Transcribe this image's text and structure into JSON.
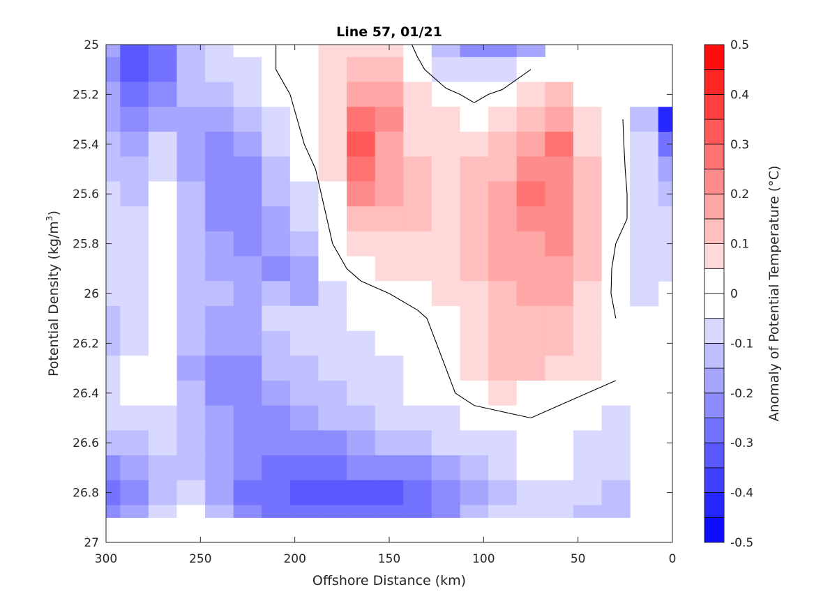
{
  "chart_data": {
    "type": "heatmap",
    "title": "Line 57, 01/21",
    "xlabel": "Offshore Distance (km)",
    "ylabel_main": "Potential Density (kg/m",
    "ylabel_sup": "3",
    "ylabel_close": ")",
    "xlim": [
      300,
      0
    ],
    "x_reversed": true,
    "ylim": [
      25,
      27
    ],
    "y_reversed": true,
    "xticks": [
      300,
      250,
      200,
      150,
      100,
      50,
      0
    ],
    "xtick_labels": [
      "300",
      "250",
      "200",
      "150",
      "100",
      "50",
      "0"
    ],
    "yticks": [
      25,
      25.2,
      25.4,
      25.6,
      25.8,
      26,
      26.2,
      26.4,
      26.6,
      26.8,
      27
    ],
    "ytick_labels": [
      "25",
      "25.2",
      "25.4",
      "25.6",
      "25.8",
      "26",
      "26.2",
      "26.4",
      "26.6",
      "26.8",
      "27"
    ],
    "grid": false,
    "colorbar": {
      "label": "Anomaly of Potential Temperature (°C)",
      "clim": [
        -0.5,
        0.5
      ],
      "step": 0.05,
      "tick_values": [
        0.5,
        0.4,
        0.3,
        0.2,
        0.1,
        0,
        -0.1,
        -0.2,
        -0.3,
        -0.4,
        -0.5
      ],
      "tick_labels": [
        "0.5",
        "0.4",
        "0.3",
        "0.2",
        "0.1",
        "0",
        "-0.1",
        "-0.2",
        "-0.3",
        "-0.4",
        "-0.5"
      ],
      "negative_color": "#0000ff",
      "positive_color": "#ff0000",
      "zero_color": "#ffffff"
    },
    "contour_level": 0,
    "data_extent": {
      "x": [
        35,
        300
      ],
      "y": [
        25,
        26.9
      ]
    },
    "grid_x": [
      300,
      285,
      270,
      255,
      240,
      225,
      210,
      195,
      180,
      165,
      150,
      135,
      120,
      105,
      90,
      75,
      60,
      45,
      30,
      15,
      0
    ],
    "grid_y": [
      25.0,
      25.1,
      25.2,
      25.3,
      25.4,
      25.5,
      25.6,
      25.7,
      25.8,
      25.9,
      26.0,
      26.1,
      26.2,
      26.3,
      26.4,
      26.5,
      26.6,
      26.7,
      26.8,
      26.9
    ],
    "anomaly": [
      [
        -0.18,
        -0.34,
        -0.28,
        -0.14,
        -0.08,
        -0.04,
        0.0,
        0.02,
        0.06,
        0.1,
        0.08,
        -0.02,
        -0.14,
        -0.2,
        -0.24,
        -0.18,
        null,
        null,
        null,
        null,
        null
      ],
      [
        -0.2,
        -0.32,
        -0.26,
        -0.12,
        -0.1,
        -0.06,
        0.0,
        0.04,
        0.08,
        0.14,
        0.12,
        0.02,
        -0.06,
        -0.1,
        -0.08,
        0.0,
        0.04,
        null,
        null,
        null,
        null
      ],
      [
        -0.18,
        -0.26,
        -0.2,
        -0.14,
        -0.14,
        -0.1,
        -0.04,
        0.04,
        0.1,
        0.2,
        0.16,
        0.06,
        0.02,
        -0.02,
        0.02,
        0.08,
        0.12,
        0.04,
        null,
        null,
        null
      ],
      [
        -0.16,
        -0.2,
        -0.16,
        -0.16,
        -0.18,
        -0.14,
        -0.06,
        0.02,
        0.1,
        0.28,
        0.22,
        0.08,
        0.06,
        0.04,
        0.06,
        0.12,
        0.2,
        0.08,
        0.04,
        -0.12,
        -0.4
      ],
      [
        -0.14,
        -0.16,
        -0.1,
        -0.18,
        -0.2,
        -0.16,
        -0.1,
        0.0,
        0.08,
        0.3,
        0.2,
        0.1,
        0.08,
        0.1,
        0.12,
        0.16,
        0.26,
        0.1,
        0.04,
        -0.1,
        -0.3
      ],
      [
        -0.12,
        -0.14,
        -0.06,
        -0.16,
        -0.22,
        -0.2,
        -0.12,
        -0.04,
        0.06,
        0.26,
        0.18,
        0.12,
        0.1,
        0.12,
        0.14,
        0.22,
        0.24,
        0.12,
        0.04,
        -0.08,
        -0.16
      ],
      [
        -0.1,
        -0.12,
        -0.02,
        -0.14,
        -0.22,
        -0.24,
        -0.14,
        -0.06,
        0.04,
        0.22,
        0.16,
        0.12,
        0.1,
        0.12,
        0.16,
        0.26,
        0.24,
        0.14,
        0.04,
        -0.06,
        -0.12
      ],
      [
        -0.08,
        -0.1,
        0.0,
        -0.14,
        -0.2,
        -0.22,
        -0.16,
        -0.08,
        0.02,
        0.14,
        0.14,
        0.12,
        0.1,
        0.12,
        0.16,
        0.24,
        0.24,
        0.14,
        0.04,
        -0.06,
        -0.1
      ],
      [
        -0.08,
        -0.08,
        -0.02,
        -0.12,
        -0.18,
        -0.2,
        -0.18,
        -0.12,
        0.0,
        0.08,
        0.1,
        0.1,
        0.1,
        0.12,
        0.16,
        0.2,
        0.22,
        0.12,
        0.0,
        -0.08,
        -0.1
      ],
      [
        -0.08,
        -0.06,
        -0.04,
        -0.12,
        -0.16,
        -0.18,
        -0.2,
        -0.18,
        -0.02,
        0.02,
        0.06,
        0.08,
        0.08,
        0.12,
        0.16,
        0.18,
        0.2,
        0.12,
        -0.02,
        -0.1,
        -0.1
      ],
      [
        -0.1,
        -0.06,
        -0.04,
        -0.12,
        -0.14,
        -0.16,
        -0.14,
        -0.16,
        -0.06,
        -0.02,
        0.0,
        0.04,
        0.06,
        0.1,
        0.14,
        0.16,
        0.16,
        0.1,
        -0.02,
        -0.08,
        null
      ],
      [
        -0.12,
        -0.06,
        -0.04,
        -0.12,
        -0.16,
        -0.16,
        -0.1,
        -0.1,
        -0.08,
        -0.04,
        -0.02,
        -0.02,
        0.04,
        0.08,
        0.12,
        0.14,
        0.14,
        0.1,
        0.0,
        null,
        null
      ],
      [
        -0.12,
        -0.06,
        -0.04,
        -0.14,
        -0.18,
        -0.18,
        -0.12,
        -0.1,
        -0.1,
        -0.06,
        -0.04,
        -0.04,
        0.02,
        0.1,
        0.14,
        0.14,
        0.12,
        0.08,
        0.02,
        null,
        null
      ],
      [
        -0.1,
        -0.04,
        -0.04,
        -0.16,
        -0.2,
        -0.2,
        -0.14,
        -0.12,
        -0.1,
        -0.08,
        -0.06,
        -0.04,
        0.0,
        0.08,
        0.14,
        0.14,
        0.1,
        0.06,
        0.02,
        null,
        null
      ],
      [
        -0.08,
        -0.02,
        -0.02,
        -0.14,
        -0.2,
        -0.22,
        -0.18,
        -0.14,
        -0.12,
        -0.1,
        -0.08,
        -0.04,
        -0.02,
        0.04,
        0.06,
        0.04,
        0.02,
        0.0,
        -0.02,
        null,
        null
      ],
      [
        -0.1,
        -0.06,
        -0.06,
        -0.12,
        -0.18,
        -0.2,
        -0.2,
        -0.18,
        -0.14,
        -0.12,
        -0.1,
        -0.08,
        -0.06,
        -0.04,
        -0.02,
        0.0,
        -0.02,
        -0.04,
        -0.06,
        null,
        null
      ],
      [
        -0.14,
        -0.12,
        -0.1,
        -0.14,
        -0.18,
        -0.22,
        -0.24,
        -0.22,
        -0.2,
        -0.16,
        -0.14,
        -0.12,
        -0.1,
        -0.08,
        -0.06,
        -0.02,
        -0.04,
        -0.06,
        -0.1,
        null,
        null
      ],
      [
        -0.22,
        -0.18,
        -0.12,
        -0.14,
        -0.18,
        -0.24,
        -0.28,
        -0.3,
        -0.26,
        -0.22,
        -0.22,
        -0.2,
        -0.16,
        -0.12,
        -0.1,
        0.0,
        -0.04,
        -0.06,
        -0.1,
        null,
        null
      ],
      [
        -0.3,
        -0.24,
        -0.12,
        -0.06,
        -0.16,
        -0.26,
        -0.3,
        -0.34,
        -0.32,
        -0.34,
        -0.32,
        -0.28,
        -0.22,
        -0.18,
        -0.12,
        -0.08,
        -0.08,
        -0.1,
        -0.12,
        null,
        null
      ],
      [
        -0.24,
        -0.18,
        -0.1,
        -0.02,
        -0.12,
        -0.2,
        -0.26,
        -0.3,
        -0.28,
        -0.3,
        -0.3,
        -0.26,
        -0.2,
        -0.14,
        -0.1,
        -0.08,
        -0.1,
        -0.12,
        -0.12,
        null,
        null
      ]
    ]
  }
}
